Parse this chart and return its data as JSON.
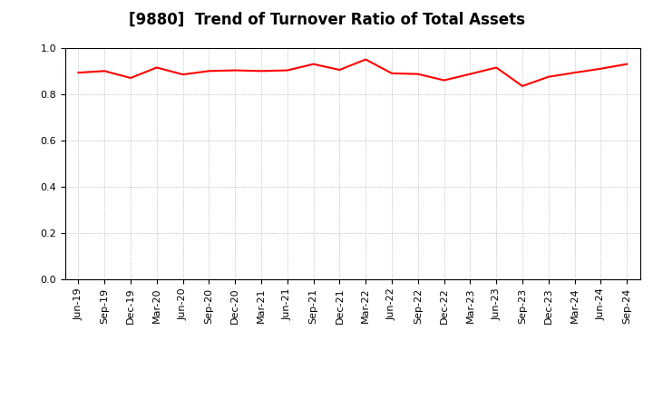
{
  "title": "[9880]  Trend of Turnover Ratio of Total Assets",
  "labels": [
    "Jun-19",
    "Sep-19",
    "Dec-19",
    "Mar-20",
    "Jun-20",
    "Sep-20",
    "Dec-20",
    "Mar-21",
    "Jun-21",
    "Sep-21",
    "Dec-21",
    "Mar-22",
    "Jun-22",
    "Sep-22",
    "Dec-22",
    "Mar-23",
    "Jun-23",
    "Sep-23",
    "Dec-23",
    "Mar-24",
    "Jun-24",
    "Sep-24"
  ],
  "values": [
    0.893,
    0.9,
    0.87,
    0.915,
    0.885,
    0.9,
    0.903,
    0.9,
    0.903,
    0.93,
    0.905,
    0.95,
    0.89,
    0.887,
    0.86,
    0.887,
    0.915,
    0.835,
    0.875,
    0.893,
    0.91,
    0.93
  ],
  "ylim": [
    0.0,
    1.0
  ],
  "yticks": [
    0.0,
    0.2,
    0.4,
    0.6,
    0.8,
    1.0
  ],
  "line_color": "#FF0000",
  "line_width": 1.5,
  "bg_color": "#FFFFFF",
  "grid_color": "#AAAAAA",
  "title_fontsize": 12,
  "tick_fontsize": 8
}
